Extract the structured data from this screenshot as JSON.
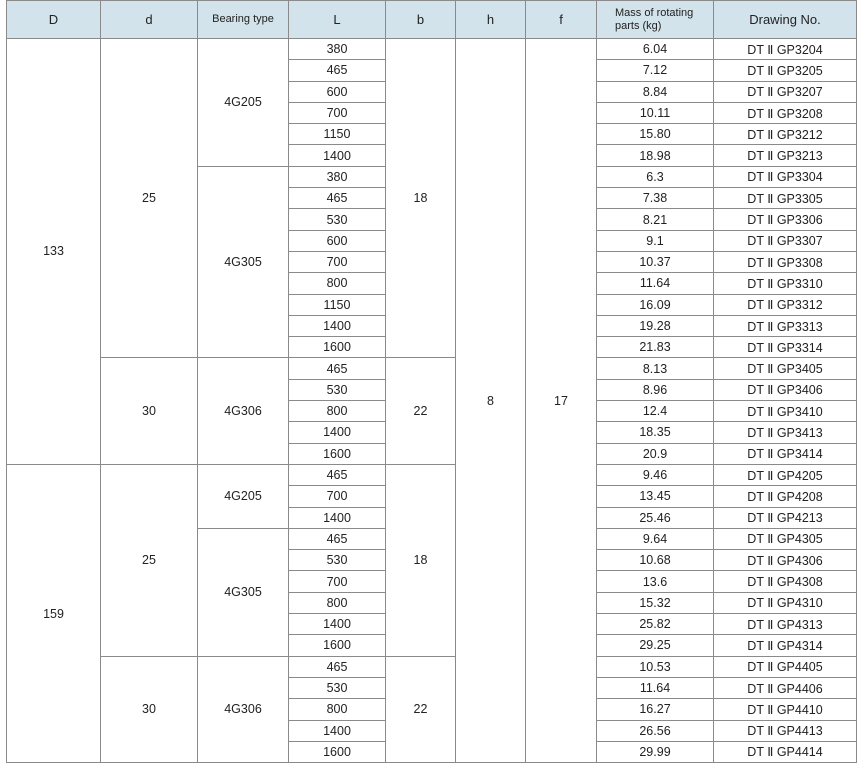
{
  "headers": [
    "D",
    "d",
    "Bearing type",
    "L",
    "b",
    "h",
    "f",
    "Mass of rotating parts (kg)",
    "Drawing No."
  ],
  "groups": {
    "D": [
      {
        "value": "133",
        "span": 20
      },
      {
        "value": "159",
        "span": 14
      }
    ],
    "d": [
      {
        "value": "25",
        "span": 15
      },
      {
        "value": "30",
        "span": 5
      },
      {
        "value": "25",
        "span": 9
      },
      {
        "value": "30",
        "span": 5
      }
    ],
    "bearing_type": [
      {
        "value": "4G205",
        "span": 6
      },
      {
        "value": "4G305",
        "span": 9
      },
      {
        "value": "4G306",
        "span": 5
      },
      {
        "value": "4G205",
        "span": 3
      },
      {
        "value": "4G305",
        "span": 6
      },
      {
        "value": "4G306",
        "span": 5
      }
    ],
    "b": [
      {
        "value": "18",
        "span": 15
      },
      {
        "value": "22",
        "span": 5
      },
      {
        "value": "18",
        "span": 9
      },
      {
        "value": "22",
        "span": 5
      }
    ],
    "h": [
      {
        "value": "8",
        "span": 34
      }
    ],
    "f": [
      {
        "value": "17",
        "span": 34
      }
    ]
  },
  "rows": [
    {
      "L": "380",
      "mass": "6.04",
      "drawing": "DT Ⅱ GP3204"
    },
    {
      "L": "465",
      "mass": "7.12",
      "drawing": "DT Ⅱ GP3205"
    },
    {
      "L": "600",
      "mass": "8.84",
      "drawing": "DT Ⅱ GP3207"
    },
    {
      "L": "700",
      "mass": "10.11",
      "drawing": "DT Ⅱ GP3208"
    },
    {
      "L": "1150",
      "mass": "15.80",
      "drawing": "DT Ⅱ GP3212"
    },
    {
      "L": "1400",
      "mass": "18.98",
      "drawing": "DT Ⅱ GP3213"
    },
    {
      "L": "380",
      "mass": "6.3",
      "drawing": "DT Ⅱ GP3304"
    },
    {
      "L": "465",
      "mass": "7.38",
      "drawing": "DT Ⅱ GP3305"
    },
    {
      "L": "530",
      "mass": "8.21",
      "drawing": "DT Ⅱ GP3306"
    },
    {
      "L": "600",
      "mass": "9.1",
      "drawing": "DT Ⅱ GP3307"
    },
    {
      "L": "700",
      "mass": "10.37",
      "drawing": "DT Ⅱ GP3308"
    },
    {
      "L": "800",
      "mass": "11.64",
      "drawing": "DT Ⅱ GP3310"
    },
    {
      "L": "1150",
      "mass": "16.09",
      "drawing": "DT Ⅱ GP3312"
    },
    {
      "L": "1400",
      "mass": "19.28",
      "drawing": "DT Ⅱ GP3313"
    },
    {
      "L": "1600",
      "mass": "21.83",
      "drawing": "DT Ⅱ GP3314"
    },
    {
      "L": "465",
      "mass": "8.13",
      "drawing": "DT Ⅱ GP3405"
    },
    {
      "L": "530",
      "mass": "8.96",
      "drawing": "DT Ⅱ GP3406"
    },
    {
      "L": "800",
      "mass": "12.4",
      "drawing": "DT Ⅱ GP3410"
    },
    {
      "L": "1400",
      "mass": "18.35",
      "drawing": "DT Ⅱ GP3413"
    },
    {
      "L": "1600",
      "mass": "20.9",
      "drawing": "DT Ⅱ GP3414"
    },
    {
      "L": "465",
      "mass": "9.46",
      "drawing": "DT Ⅱ GP4205"
    },
    {
      "L": "700",
      "mass": "13.45",
      "drawing": "DT Ⅱ GP4208"
    },
    {
      "L": "1400",
      "mass": "25.46",
      "drawing": "DT Ⅱ GP4213"
    },
    {
      "L": "465",
      "mass": "9.64",
      "drawing": "DT Ⅱ GP4305"
    },
    {
      "L": "530",
      "mass": "10.68",
      "drawing": "DT Ⅱ GP4306"
    },
    {
      "L": "700",
      "mass": "13.6",
      "drawing": "DT Ⅱ GP4308"
    },
    {
      "L": "800",
      "mass": "15.32",
      "drawing": "DT Ⅱ GP4310"
    },
    {
      "L": "1400",
      "mass": "25.82",
      "drawing": "DT Ⅱ GP4313"
    },
    {
      "L": "1600",
      "mass": "29.25",
      "drawing": "DT Ⅱ GP4314"
    },
    {
      "L": "465",
      "mass": "10.53",
      "drawing": "DT Ⅱ GP4405"
    },
    {
      "L": "530",
      "mass": "11.64",
      "drawing": "DT Ⅱ GP4406"
    },
    {
      "L": "800",
      "mass": "16.27",
      "drawing": "DT Ⅱ GP4410"
    },
    {
      "L": "1400",
      "mass": "26.56",
      "drawing": "DT Ⅱ GP4413"
    },
    {
      "L": "1600",
      "mass": "29.99",
      "drawing": "DT Ⅱ GP4414"
    }
  ]
}
